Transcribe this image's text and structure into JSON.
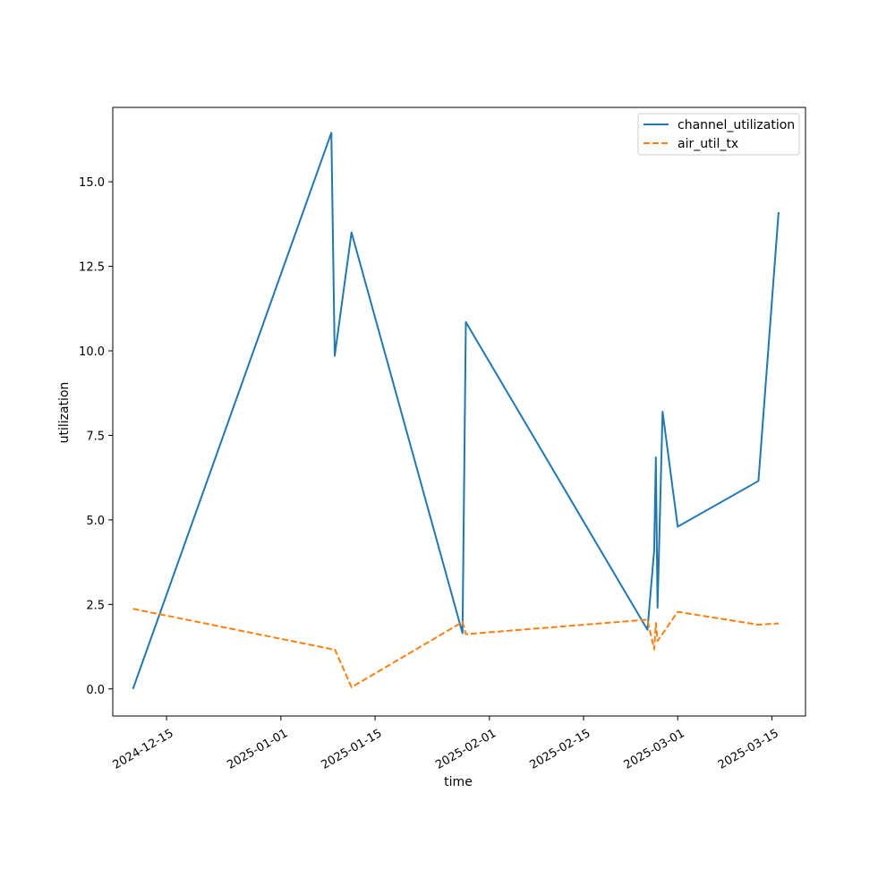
{
  "chart_data": {
    "type": "line",
    "title": "",
    "xlabel": "time",
    "ylabel": "utilization",
    "grid": false,
    "legend_position": "top-right",
    "xlim": [
      "2024-12-07",
      "2025-03-20"
    ],
    "ylim": [
      -0.8,
      17.2
    ],
    "x_ticks": [
      "2024-12-15",
      "2025-01-01",
      "2025-01-15",
      "2025-02-01",
      "2025-02-15",
      "2025-03-01",
      "2025-03-15"
    ],
    "y_ticks": [
      "0.0",
      "2.5",
      "5.0",
      "7.5",
      "10.0",
      "12.5",
      "15.0"
    ],
    "series": [
      {
        "name": "channel_utilization",
        "color": "#1f77b4",
        "dash": "solid",
        "points": [
          {
            "x": "2024-12-10",
            "y": 0.0
          },
          {
            "x": "2025-01-08 12:00",
            "y": 16.45
          },
          {
            "x": "2025-01-09 00:00",
            "y": 9.85
          },
          {
            "x": "2025-01-11 12:00",
            "y": 13.5
          },
          {
            "x": "2025-01-28",
            "y": 1.65
          },
          {
            "x": "2025-01-28 12:00",
            "y": 10.85
          },
          {
            "x": "2025-02-24 12:00",
            "y": 1.75
          },
          {
            "x": "2025-02-25 12:00",
            "y": 4.1
          },
          {
            "x": "2025-02-25 18:00",
            "y": 6.85
          },
          {
            "x": "2025-02-26",
            "y": 2.4
          },
          {
            "x": "2025-02-26 18:00",
            "y": 8.2
          },
          {
            "x": "2025-03-01",
            "y": 4.8
          },
          {
            "x": "2025-03-13 00:00",
            "y": 6.15
          },
          {
            "x": "2025-03-16 00:00",
            "y": 14.1
          }
        ]
      },
      {
        "name": "air_util_tx",
        "color": "#ff7f0e",
        "dash": "dashed",
        "points": [
          {
            "x": "2024-12-10",
            "y": 2.37
          },
          {
            "x": "2025-01-08 12:00",
            "y": 1.18
          },
          {
            "x": "2025-01-09 00:00",
            "y": 1.18
          },
          {
            "x": "2025-01-11 12:00",
            "y": 0.05
          },
          {
            "x": "2025-01-28",
            "y": 1.98
          },
          {
            "x": "2025-01-28 12:00",
            "y": 1.62
          },
          {
            "x": "2025-02-24 12:00",
            "y": 2.05
          },
          {
            "x": "2025-02-25 12:00",
            "y": 1.17
          },
          {
            "x": "2025-02-25 18:00",
            "y": 1.95
          },
          {
            "x": "2025-02-26",
            "y": 1.42
          },
          {
            "x": "2025-03-01",
            "y": 2.28
          },
          {
            "x": "2025-03-13 00:00",
            "y": 1.9
          },
          {
            "x": "2025-03-16 00:00",
            "y": 1.94
          }
        ]
      }
    ]
  }
}
